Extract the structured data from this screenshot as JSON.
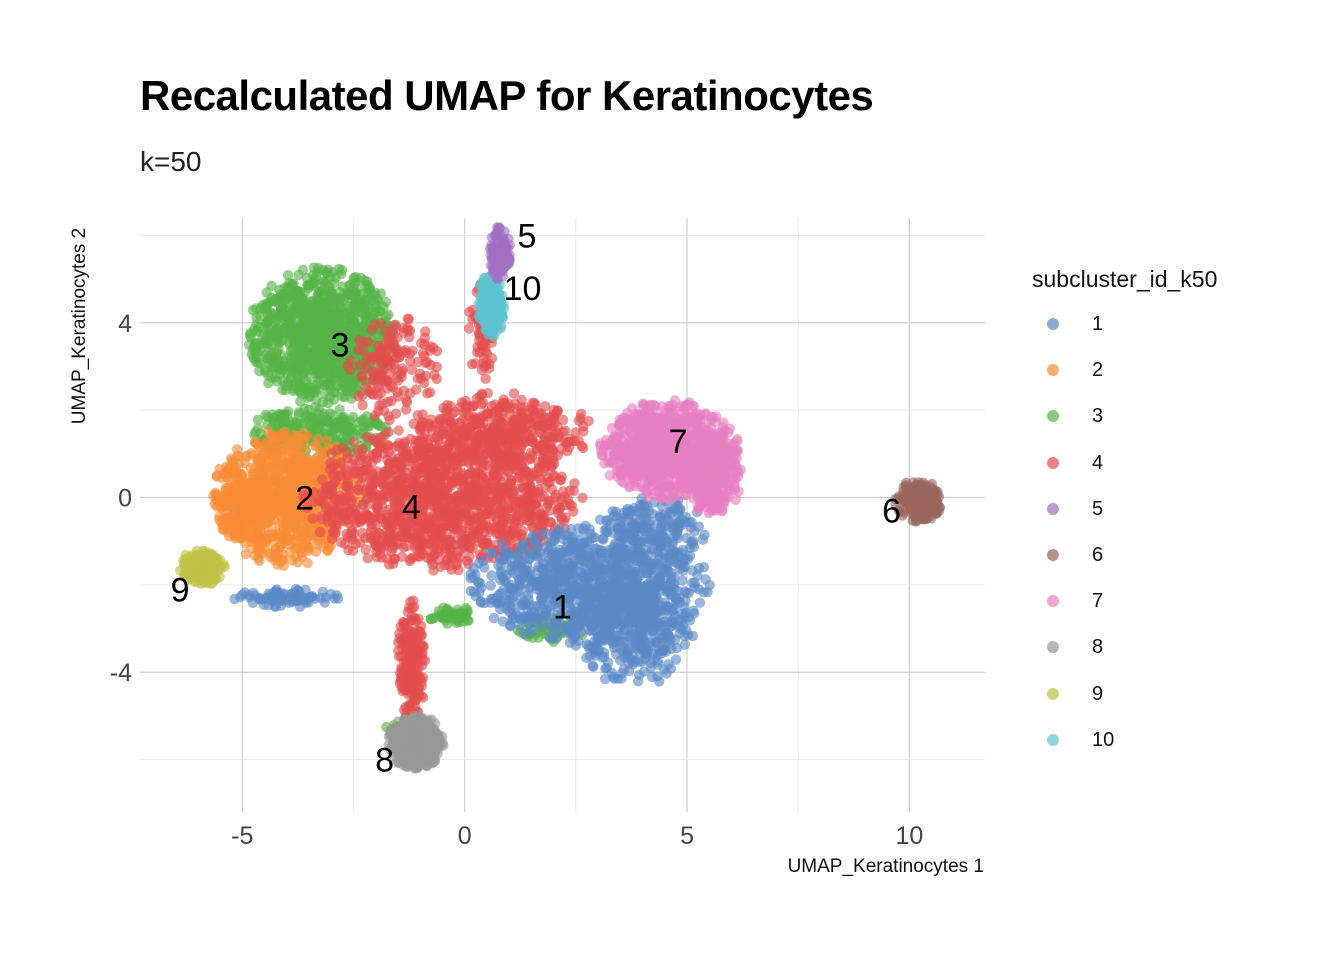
{
  "chart_data": {
    "type": "scatter",
    "title": "Recalculated UMAP for Keratinocytes",
    "subtitle": "k=50",
    "xlabel": "UMAP_Keratinocytes 1",
    "ylabel": "UMAP_Keratinocytes 2",
    "xlim": [
      -7.3,
      11.7
    ],
    "ylim": [
      -7.2,
      6.4
    ],
    "x_ticks": [
      -5,
      0,
      5,
      10
    ],
    "y_ticks": [
      -4,
      0,
      4
    ],
    "x_tick_labels": [
      "-5",
      "0",
      "5",
      "10"
    ],
    "y_tick_labels": [
      "-4",
      "0",
      "4"
    ],
    "grid": true,
    "legend_title": "subcluster_id_k50",
    "legend_position": "right",
    "series": [
      {
        "name": "1",
        "color": "#5B89C6",
        "cluster_label": "1",
        "label_x": 2.2,
        "label_y": -2.5,
        "regions": [
          {
            "cx": 2.8,
            "cy": -2.0,
            "rx": 2.6,
            "ry": 1.3,
            "n": 900
          },
          {
            "cx": 3.8,
            "cy": -3.0,
            "rx": 1.3,
            "ry": 1.3,
            "n": 350
          },
          {
            "cx": 4.2,
            "cy": -0.8,
            "rx": 1.2,
            "ry": 0.8,
            "n": 200
          },
          {
            "cx": -4.0,
            "cy": -2.3,
            "rx": 1.2,
            "ry": 0.2,
            "n": 80
          }
        ]
      },
      {
        "name": "2",
        "color": "#F88C37",
        "cluster_label": "2",
        "label_x": -3.6,
        "label_y": 0.0,
        "regions": [
          {
            "cx": -4.0,
            "cy": 0.0,
            "rx": 1.6,
            "ry": 1.5,
            "n": 900
          },
          {
            "cx": -4.9,
            "cy": -0.2,
            "rx": 0.7,
            "ry": 0.7,
            "n": 200
          }
        ]
      },
      {
        "name": "3",
        "color": "#55B347",
        "cluster_label": "3",
        "label_x": -2.8,
        "label_y": 3.5,
        "regions": [
          {
            "cx": -3.2,
            "cy": 3.7,
            "rx": 1.6,
            "ry": 1.5,
            "n": 1100
          },
          {
            "cx": -3.3,
            "cy": 1.5,
            "rx": 1.5,
            "ry": 0.6,
            "n": 250
          },
          {
            "cx": -0.3,
            "cy": -2.7,
            "rx": 0.6,
            "ry": 0.2,
            "n": 50
          },
          {
            "cx": 2.0,
            "cy": -3.0,
            "rx": 0.8,
            "ry": 0.3,
            "n": 60
          },
          {
            "cx": -1.6,
            "cy": -5.3,
            "rx": 0.2,
            "ry": 0.1,
            "n": 15
          }
        ]
      },
      {
        "name": "4",
        "color": "#E44D4D",
        "cluster_label": "4",
        "label_x": -1.2,
        "label_y": -0.2,
        "regions": [
          {
            "cx": -0.5,
            "cy": 0.0,
            "rx": 3.0,
            "ry": 1.6,
            "n": 1400
          },
          {
            "cx": 0.8,
            "cy": 1.5,
            "rx": 2.0,
            "ry": 0.9,
            "n": 400
          },
          {
            "cx": -1.2,
            "cy": -3.8,
            "rx": 0.3,
            "ry": 1.5,
            "n": 200
          },
          {
            "cx": -1.6,
            "cy": 3.0,
            "rx": 1.0,
            "ry": 1.2,
            "n": 150
          },
          {
            "cx": 0.4,
            "cy": 3.8,
            "rx": 0.3,
            "ry": 1.2,
            "n": 60
          }
        ]
      },
      {
        "name": "5",
        "color": "#9F6FC1",
        "cluster_label": "5",
        "label_x": 1.4,
        "label_y": 6.0,
        "regions": [
          {
            "cx": 0.8,
            "cy": 5.6,
            "rx": 0.25,
            "ry": 0.6,
            "n": 120
          }
        ]
      },
      {
        "name": "6",
        "color": "#99655D",
        "cluster_label": "6",
        "label_x": 9.6,
        "label_y": -0.3,
        "regions": [
          {
            "cx": 10.2,
            "cy": -0.1,
            "rx": 0.5,
            "ry": 0.5,
            "n": 200
          }
        ]
      },
      {
        "name": "7",
        "color": "#E680C2",
        "cluster_label": "7",
        "label_x": 4.8,
        "label_y": 1.3,
        "regions": [
          {
            "cx": 4.6,
            "cy": 1.1,
            "rx": 1.5,
            "ry": 1.1,
            "n": 900
          },
          {
            "cx": 5.6,
            "cy": 0.5,
            "rx": 0.6,
            "ry": 0.9,
            "n": 250
          }
        ]
      },
      {
        "name": "8",
        "color": "#979797",
        "cluster_label": "8",
        "label_x": -1.8,
        "label_y": -6.0,
        "regions": [
          {
            "cx": -1.1,
            "cy": -5.6,
            "rx": 0.6,
            "ry": 0.6,
            "n": 400
          }
        ]
      },
      {
        "name": "9",
        "color": "#BFC246",
        "cluster_label": "9",
        "label_x": -6.4,
        "label_y": -2.1,
        "regions": [
          {
            "cx": -5.9,
            "cy": -1.6,
            "rx": 0.5,
            "ry": 0.4,
            "n": 160
          }
        ]
      },
      {
        "name": "10",
        "color": "#5EC4D1",
        "cluster_label": "10",
        "label_x": 1.3,
        "label_y": 4.8,
        "regions": [
          {
            "cx": 0.6,
            "cy": 4.4,
            "rx": 0.3,
            "ry": 0.7,
            "n": 200
          }
        ]
      }
    ]
  }
}
